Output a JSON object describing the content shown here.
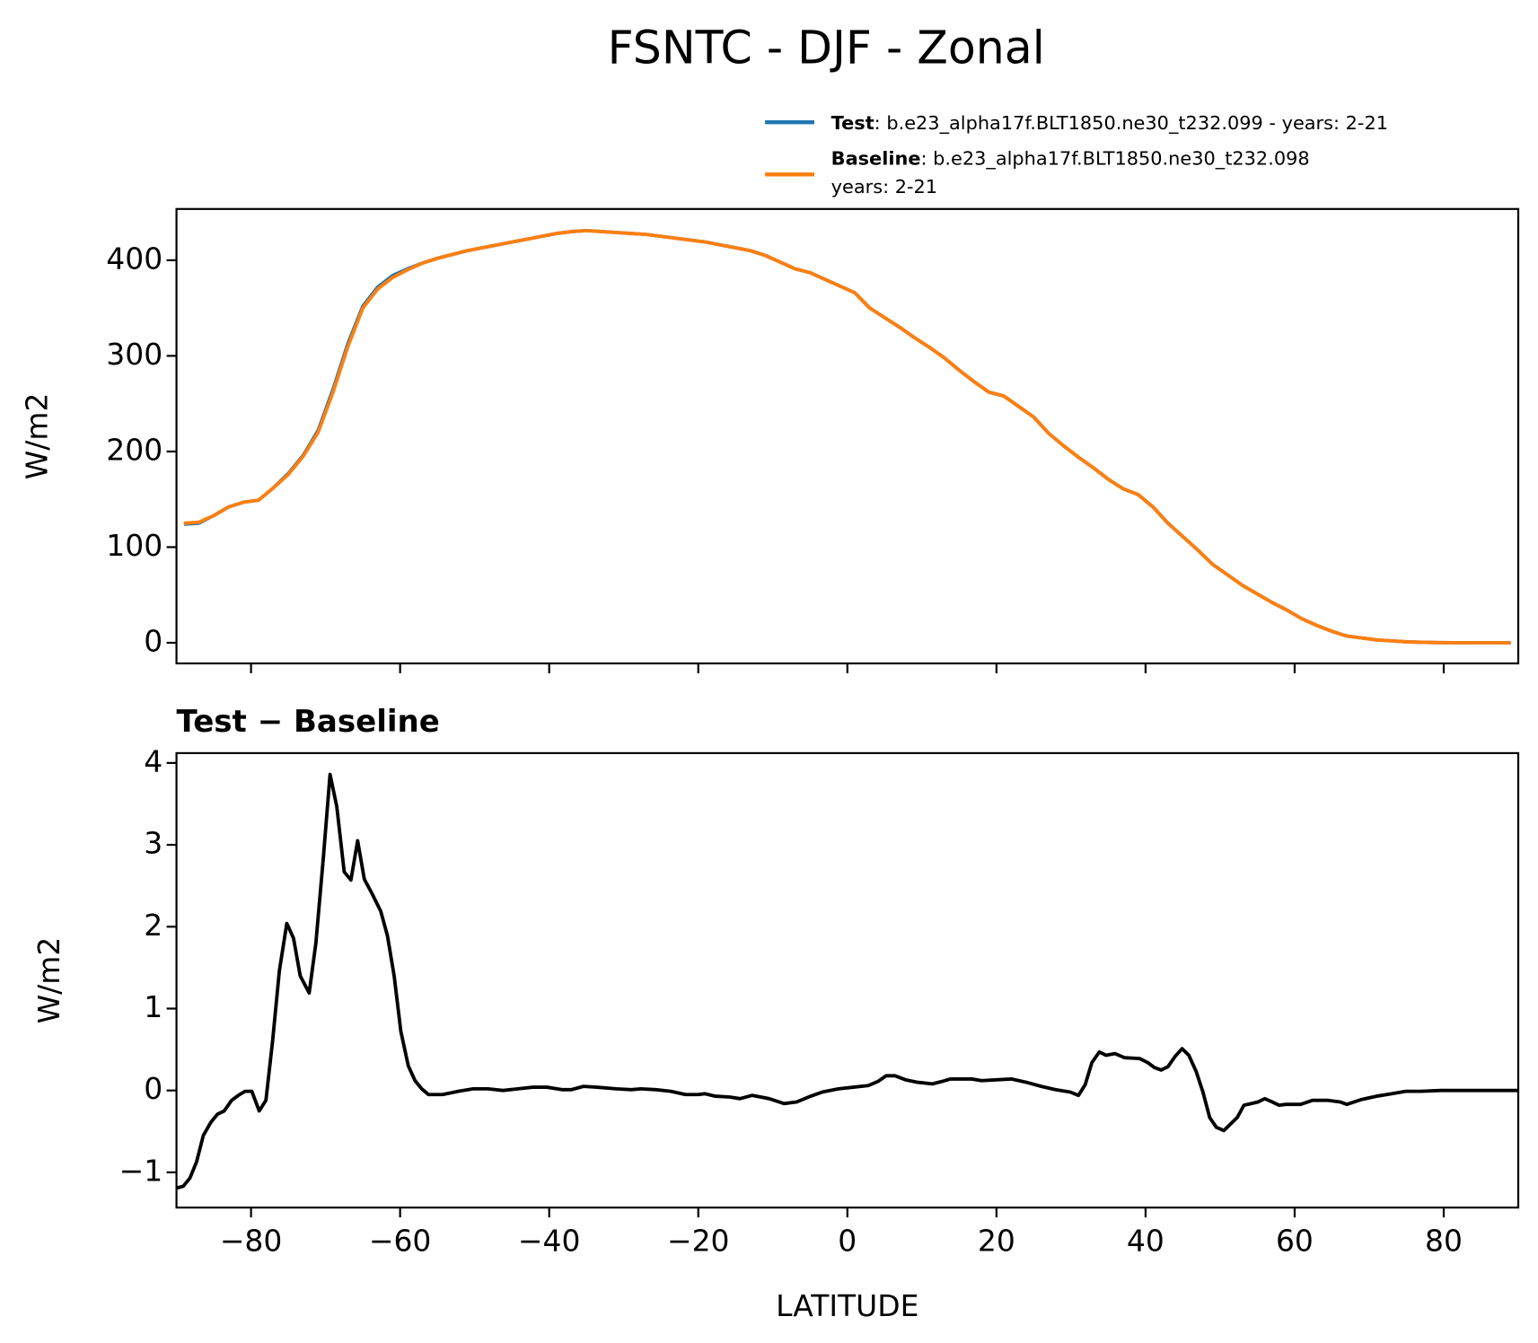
{
  "chart_data": [
    {
      "type": "line",
      "title": "FSNTC - DJF - Zonal",
      "ylabel": "W/m2",
      "x": [
        -89,
        -87,
        -85,
        -83,
        -81,
        -79,
        -77,
        -75,
        -73,
        -71,
        -69,
        -67,
        -65,
        -63,
        -61,
        -59,
        -57,
        -55,
        -53,
        -51,
        -49,
        -47,
        -45,
        -43,
        -41,
        -39,
        -37,
        -35,
        -33,
        -31,
        -29,
        -27,
        -25,
        -23,
        -21,
        -19,
        -17,
        -15,
        -13,
        -11,
        -9,
        -7,
        -5,
        -3,
        -1,
        1,
        3,
        5,
        7,
        9,
        11,
        13,
        15,
        17,
        19,
        21,
        23,
        25,
        27,
        29,
        31,
        33,
        35,
        37,
        39,
        41,
        43,
        45,
        47,
        49,
        51,
        53,
        55,
        57,
        59,
        61,
        63,
        65,
        67,
        69,
        71,
        73,
        75,
        77,
        79,
        81,
        83,
        85,
        87,
        89
      ],
      "series": [
        {
          "name": "Test",
          "description": [
            ": b.e23_alpha17f.BLT1850.ne30_t232.099 - years: 2-21"
          ],
          "color": "#1f77b4",
          "values": [
            124,
            125,
            133,
            142,
            147,
            149,
            162,
            177,
            196,
            222,
            265,
            313,
            352,
            372,
            384,
            391,
            397,
            402,
            406,
            410,
            413,
            416,
            419,
            422,
            425,
            428,
            430,
            431,
            430,
            429,
            428,
            427,
            425,
            423,
            421,
            419,
            416,
            413,
            410,
            405,
            398,
            391,
            387,
            380,
            373,
            366,
            350,
            340,
            330,
            319,
            309,
            298,
            285,
            273,
            262,
            258,
            247,
            236,
            219,
            206,
            194,
            183,
            171,
            161,
            155,
            142,
            125,
            111,
            97,
            82,
            71,
            60,
            51,
            42,
            34,
            25,
            18,
            12,
            7,
            5,
            3,
            2,
            1,
            0.5,
            0.2,
            0.1,
            0,
            0,
            0,
            0
          ]
        },
        {
          "name": "Baseline",
          "description": [
            ": b.e23_alpha17f.BLT1850.ne30_t232.098",
            "years: 2-21"
          ],
          "color": "#ff7f0e",
          "values": [
            125,
            126,
            133,
            142,
            147,
            149,
            162,
            176,
            195,
            220,
            262,
            310,
            350,
            370,
            382,
            390,
            397,
            402,
            406,
            410,
            413,
            416,
            419,
            422,
            425,
            428,
            430,
            431,
            430,
            429,
            428,
            427,
            425,
            423,
            421,
            419,
            416,
            413,
            410,
            405,
            398,
            391,
            387,
            380,
            373,
            366,
            350,
            340,
            330,
            319,
            309,
            298,
            285,
            273,
            262,
            258,
            247,
            236,
            219,
            206,
            194,
            183,
            171,
            161,
            155,
            142,
            125,
            111,
            97,
            82,
            71,
            60,
            51,
            42,
            34,
            25,
            18,
            12,
            7,
            5,
            3,
            2,
            1,
            0.5,
            0.2,
            0.1,
            0,
            0,
            0,
            0
          ]
        }
      ],
      "xlim": [
        -90,
        90
      ],
      "xticks": [
        -80,
        -60,
        -40,
        -20,
        0,
        20,
        40,
        60,
        80
      ],
      "ylim": [
        -21.6,
        453.6
      ],
      "yticks": [
        0,
        100,
        200,
        300,
        400
      ]
    },
    {
      "type": "line",
      "title": "Test − Baseline",
      "xlabel": "LATITUDE",
      "ylabel": "W/m2",
      "color": "#000000",
      "x": [
        -89.9,
        -89.1,
        -88.2,
        -87.3,
        -86.4,
        -85.4,
        -84.5,
        -83.6,
        -82.6,
        -81.7,
        -80.8,
        -79.9,
        -78.9,
        -78.0,
        -77.1,
        -76.2,
        -75.2,
        -74.3,
        -73.4,
        -72.2,
        -71.3,
        -70.3,
        -69.4,
        -68.5,
        -67.5,
        -66.6,
        -65.7,
        -64.8,
        -63.8,
        -62.6,
        -61.7,
        -60.8,
        -59.9,
        -58.9,
        -58.0,
        -57.1,
        -56.2,
        -54.3,
        -52.2,
        -50.2,
        -48.2,
        -46.2,
        -44.2,
        -42.2,
        -40.3,
        -38.3,
        -37.0,
        -35.4,
        -33.6,
        -31.0,
        -29.0,
        -27.7,
        -25.7,
        -23.7,
        -21.7,
        -20.0,
        -19.1,
        -17.7,
        -15.8,
        -14.4,
        -12.8,
        -10.5,
        -8.5,
        -6.8,
        -5.2,
        -3.4,
        -1.2,
        0.8,
        2.8,
        4.1,
        5.2,
        6.4,
        7.8,
        9.4,
        11.4,
        12.7,
        13.8,
        15.4,
        16.7,
        18.0,
        20.0,
        22.0,
        24.0,
        26.0,
        27.9,
        29.9,
        31.0,
        31.9,
        32.8,
        33.8,
        34.7,
        35.9,
        37.2,
        39.2,
        40.3,
        41.2,
        42.1,
        43.0,
        44.0,
        44.9,
        45.8,
        46.8,
        47.7,
        48.6,
        49.5,
        50.5,
        51.4,
        52.3,
        53.2,
        54.2,
        55.1,
        56.0,
        57.0,
        57.9,
        58.8,
        60.8,
        62.4,
        64.4,
        66.1,
        67.0,
        69.0,
        71.0,
        73.0,
        74.9,
        76.9,
        79.6,
        82.2,
        90.0
      ],
      "values": [
        -1.19,
        -1.17,
        -1.07,
        -0.87,
        -0.55,
        -0.39,
        -0.29,
        -0.25,
        -0.12,
        -0.06,
        -0.01,
        -0.01,
        -0.25,
        -0.12,
        0.61,
        1.46,
        2.04,
        1.86,
        1.4,
        1.19,
        1.8,
        2.84,
        3.86,
        3.47,
        2.67,
        2.57,
        3.05,
        2.58,
        2.41,
        2.19,
        1.89,
        1.4,
        0.72,
        0.3,
        0.12,
        0.02,
        -0.05,
        -0.05,
        -0.01,
        0.02,
        0.02,
        0,
        0.02,
        0.04,
        0.04,
        0.01,
        0.01,
        0.05,
        0.04,
        0.02,
        0.01,
        0.02,
        0.01,
        -0.01,
        -0.05,
        -0.05,
        -0.04,
        -0.07,
        -0.08,
        -0.1,
        -0.06,
        -0.1,
        -0.16,
        -0.14,
        -0.08,
        -0.02,
        0.02,
        0.04,
        0.06,
        0.11,
        0.18,
        0.18,
        0.13,
        0.1,
        0.08,
        0.11,
        0.14,
        0.14,
        0.14,
        0.12,
        0.13,
        0.14,
        0.1,
        0.05,
        0.01,
        -0.02,
        -0.06,
        0.07,
        0.34,
        0.47,
        0.43,
        0.45,
        0.4,
        0.39,
        0.34,
        0.28,
        0.25,
        0.29,
        0.42,
        0.51,
        0.43,
        0.23,
        -0.02,
        -0.33,
        -0.45,
        -0.49,
        -0.41,
        -0.33,
        -0.18,
        -0.16,
        -0.14,
        -0.1,
        -0.14,
        -0.18,
        -0.17,
        -0.17,
        -0.12,
        -0.12,
        -0.14,
        -0.17,
        -0.11,
        -0.07,
        -0.04,
        -0.01,
        -0.01,
        0,
        0,
        0
      ],
      "xlim": [
        -90,
        90
      ],
      "xticks": [
        {
          "value": -80,
          "label": "−80"
        },
        {
          "value": -60,
          "label": "−60"
        },
        {
          "value": -40,
          "label": "−40"
        },
        {
          "value": -20,
          "label": "−20"
        },
        0,
        20,
        40,
        60,
        80
      ],
      "ylim": [
        -1.43,
        4.12
      ],
      "yticks": [
        {
          "value": -1,
          "label": "−1"
        },
        0,
        1,
        2,
        3,
        4
      ]
    }
  ]
}
